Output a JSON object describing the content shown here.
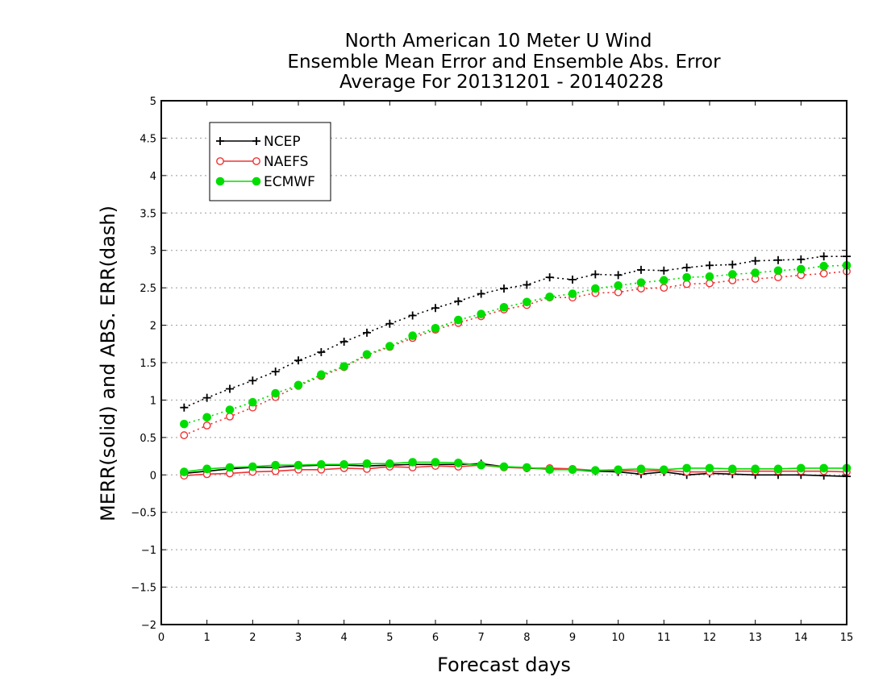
{
  "chart_data": {
    "type": "line",
    "title_lines": [
      "North American 10 Meter U Wind",
      "Ensemble Mean Error and Ensemble Abs. Error",
      "Average For 20131201 - 20140228"
    ],
    "xlabel": "Forecast days",
    "ylabel": "MERR(solid) and ABS. ERR(dash)",
    "xlim": [
      0,
      15
    ],
    "ylim": [
      -2,
      5
    ],
    "x_ticks": [
      0,
      1,
      2,
      3,
      4,
      5,
      6,
      7,
      8,
      9,
      10,
      11,
      12,
      13,
      14,
      15
    ],
    "y_ticks": [
      -2,
      -1.5,
      -1,
      -0.5,
      0,
      0.5,
      1,
      1.5,
      2,
      2.5,
      3,
      3.5,
      4,
      4.5,
      5
    ],
    "grid": "horizontal dotted",
    "legend_position": "top-left",
    "x": [
      0.5,
      1,
      1.5,
      2,
      2.5,
      3,
      3.5,
      4,
      4.5,
      5,
      5.5,
      6,
      6.5,
      7,
      7.5,
      8,
      8.5,
      9,
      9.5,
      10,
      10.5,
      11,
      11.5,
      12,
      12.5,
      13,
      13.5,
      14,
      14.5,
      15
    ],
    "series": [
      {
        "name": "NCEP",
        "color": "#000000",
        "marker": "plus",
        "mean_error": [
          0.02,
          0.05,
          0.08,
          0.1,
          0.1,
          0.12,
          0.13,
          0.13,
          0.12,
          0.13,
          0.14,
          0.14,
          0.14,
          0.15,
          0.11,
          0.09,
          0.08,
          0.07,
          0.05,
          0.04,
          0.01,
          0.04,
          0.0,
          0.02,
          0.01,
          0.0,
          0.0,
          0.0,
          -0.01,
          -0.02
        ],
        "abs_error": [
          0.9,
          1.03,
          1.15,
          1.26,
          1.38,
          1.53,
          1.64,
          1.78,
          1.9,
          2.02,
          2.13,
          2.23,
          2.32,
          2.42,
          2.49,
          2.54,
          2.64,
          2.61,
          2.68,
          2.67,
          2.74,
          2.73,
          2.77,
          2.8,
          2.81,
          2.86,
          2.87,
          2.88,
          2.92,
          2.92
        ]
      },
      {
        "name": "NAEFS",
        "color": "#ee3333",
        "marker": "open-circle",
        "mean_error": [
          -0.01,
          0.01,
          0.02,
          0.04,
          0.05,
          0.07,
          0.07,
          0.09,
          0.08,
          0.11,
          0.1,
          0.12,
          0.11,
          0.13,
          0.1,
          0.09,
          0.09,
          0.08,
          0.06,
          0.06,
          0.05,
          0.06,
          0.04,
          0.04,
          0.05,
          0.05,
          0.05,
          0.05,
          0.05,
          0.04
        ],
        "abs_error": [
          0.53,
          0.66,
          0.78,
          0.9,
          1.04,
          1.19,
          1.32,
          1.44,
          1.6,
          1.71,
          1.83,
          1.94,
          2.03,
          2.12,
          2.21,
          2.27,
          2.37,
          2.37,
          2.43,
          2.44,
          2.49,
          2.5,
          2.55,
          2.56,
          2.6,
          2.62,
          2.64,
          2.67,
          2.69,
          2.72
        ]
      },
      {
        "name": "ECMWF",
        "color": "#00dd00",
        "marker": "filled-circle",
        "mean_error": [
          0.04,
          0.08,
          0.1,
          0.11,
          0.13,
          0.13,
          0.14,
          0.14,
          0.15,
          0.15,
          0.17,
          0.17,
          0.16,
          0.13,
          0.11,
          0.1,
          0.07,
          0.07,
          0.06,
          0.07,
          0.08,
          0.07,
          0.09,
          0.09,
          0.08,
          0.08,
          0.08,
          0.09,
          0.09,
          0.09
        ],
        "abs_error": [
          0.68,
          0.77,
          0.87,
          0.97,
          1.09,
          1.2,
          1.34,
          1.45,
          1.61,
          1.72,
          1.86,
          1.96,
          2.07,
          2.15,
          2.24,
          2.31,
          2.38,
          2.42,
          2.49,
          2.53,
          2.57,
          2.6,
          2.64,
          2.65,
          2.68,
          2.7,
          2.73,
          2.75,
          2.79,
          2.8
        ]
      }
    ]
  }
}
